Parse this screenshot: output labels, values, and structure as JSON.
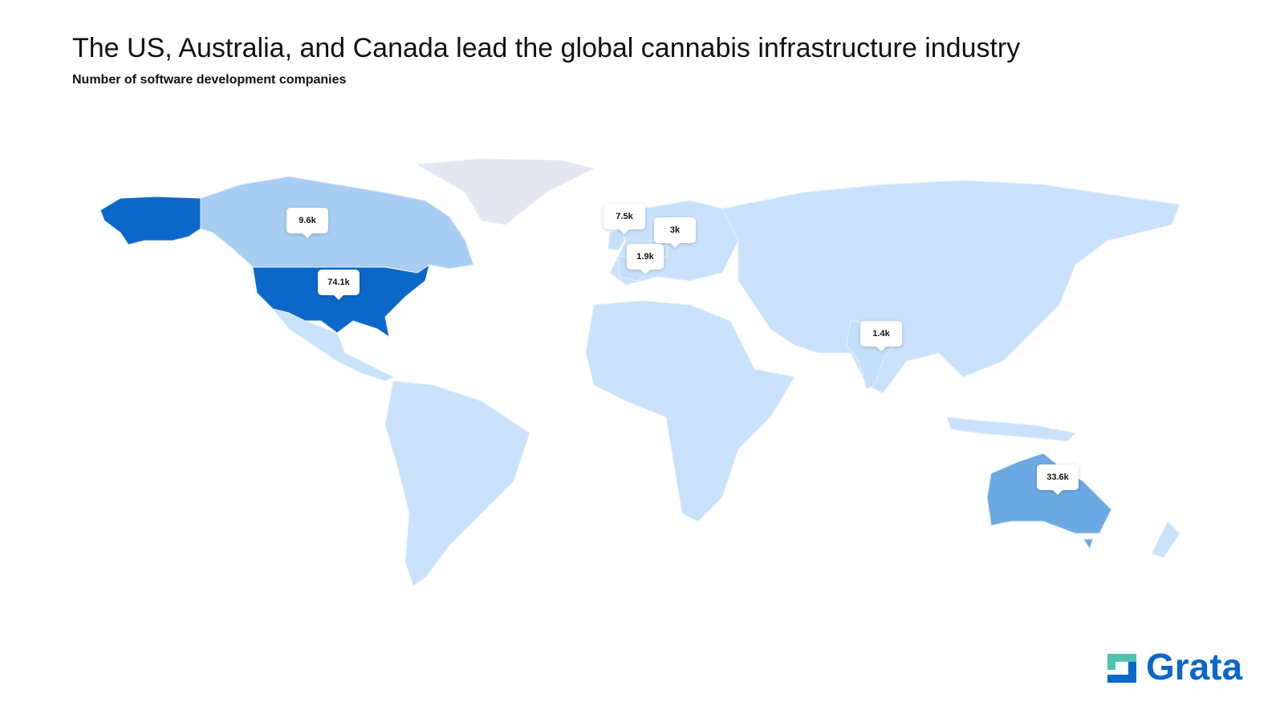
{
  "chart_data": {
    "type": "choropleth",
    "title": "The US, Australia, and Canada lead the global cannabis infrastructure industry",
    "subtitle": "Number of software development companies",
    "values": [
      74100,
      33600,
      9600,
      7500,
      3000,
      1900,
      1400
    ],
    "value_labels": [
      "74.1k",
      "33.6k",
      "9.6k",
      "7.5k",
      "3k",
      "1.9k",
      "1.4k"
    ],
    "colors": [
      "#0b68c8",
      "#6ca9e2",
      "#a8cdf3",
      "#c4dffa",
      "#c4dffa",
      "#c4dffa",
      "#c4dffa"
    ]
  },
  "brand": "Grata"
}
